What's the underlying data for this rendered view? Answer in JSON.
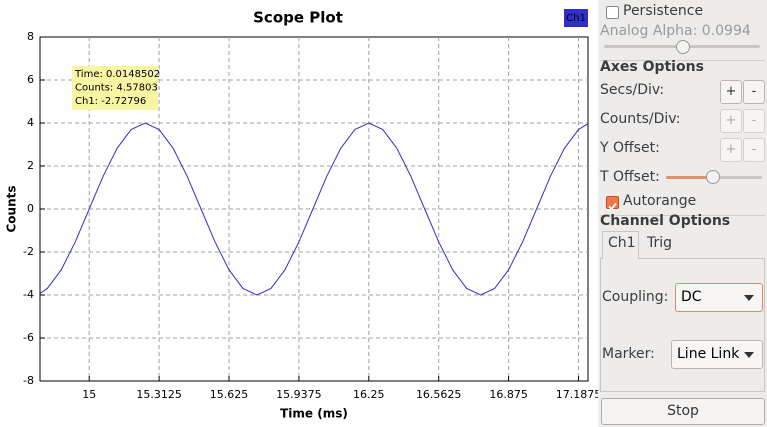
{
  "chart_data": {
    "type": "line",
    "title": "Scope Plot",
    "x_label": "Time (ms)",
    "y_label": "Counts",
    "x": [
      14.78,
      14.8125,
      14.875,
      14.9375,
      15,
      15.0625,
      15.125,
      15.1875,
      15.25,
      15.3125,
      15.375,
      15.4375,
      15.5,
      15.5625,
      15.625,
      15.6875,
      15.75,
      15.8125,
      15.875,
      15.9375,
      16,
      16.0625,
      16.125,
      16.1875,
      16.25,
      16.3125,
      16.375,
      16.4375,
      16.5,
      16.5625,
      16.625,
      16.6875,
      16.75,
      16.8125,
      16.875,
      16.9375,
      17,
      17.0625,
      17.125,
      17.1875,
      17.23
    ],
    "series": [
      {
        "name": "Ch1",
        "color": "#3030c8",
        "values": [
          -3.93,
          -3.696,
          -2.828,
          -1.531,
          0,
          1.531,
          2.828,
          3.696,
          4,
          3.696,
          2.828,
          1.531,
          0,
          -1.531,
          -2.828,
          -3.696,
          -4,
          -3.696,
          -2.828,
          -1.531,
          0,
          1.531,
          2.828,
          3.696,
          4,
          3.696,
          2.828,
          1.531,
          0,
          -1.531,
          -2.828,
          -3.696,
          -4,
          -3.696,
          -2.828,
          -1.531,
          0,
          1.531,
          2.828,
          3.696,
          3.97
        ]
      }
    ],
    "xlim": [
      14.78,
      17.23
    ],
    "ylim": [
      -8,
      8
    ],
    "xticks": [
      15,
      15.3125,
      15.625,
      15.9375,
      16.25,
      16.5625,
      16.875,
      17.1875
    ],
    "yticks": [
      -8,
      -6,
      -4,
      -2,
      0,
      2,
      4,
      6,
      8
    ],
    "grid": true,
    "legend": "top-right",
    "annotation": [
      "Time: 0.0148502",
      "Counts: 4.57803",
      "Ch1: -2.72796"
    ]
  },
  "controls": {
    "persistence": {
      "label": "Persistence",
      "checked": false
    },
    "analog_alpha": "Analog Alpha: 0.0994",
    "axes_options": {
      "title": "Axes Options",
      "rows": [
        {
          "label": "Secs/Div:",
          "plus": "+",
          "minus": "-"
        },
        {
          "label": "Counts/Div:",
          "plus": "+",
          "minus": "-"
        },
        {
          "label": "Y Offset:",
          "plus": "+",
          "minus": "-"
        }
      ],
      "t_offset": "T Offset:",
      "autorange": {
        "label": "Autorange",
        "checked": true
      }
    },
    "channel_options": {
      "title": "Channel Options",
      "tabs": [
        "Ch1",
        "Trig"
      ],
      "coupling": {
        "label": "Coupling:",
        "value": "DC"
      },
      "marker": {
        "label": "Marker:",
        "value": "Line Link"
      }
    },
    "stop": "Stop"
  }
}
